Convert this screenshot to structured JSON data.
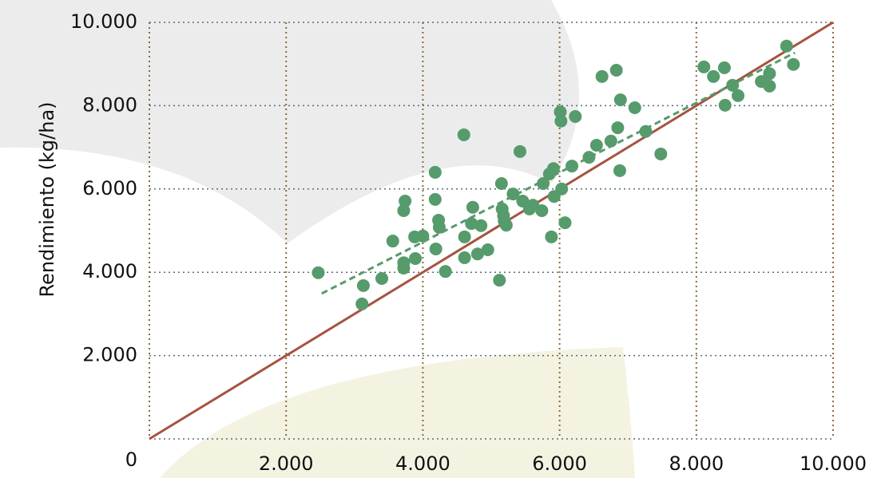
{
  "chart_data": {
    "type": "scatter",
    "y_label": "Rendimiento (kg/ha)",
    "xlim": [
      0,
      10000
    ],
    "ylim": [
      0,
      10000
    ],
    "xticks": [
      {
        "value": 2000,
        "label": "2.000"
      },
      {
        "value": 4000,
        "label": "4.000"
      },
      {
        "value": 6000,
        "label": "6.000"
      },
      {
        "value": 8000,
        "label": "8.000"
      },
      {
        "value": 10000,
        "label": "10.000"
      }
    ],
    "yticks": [
      0,
      {
        "value": 2000,
        "label": "2.000"
      },
      {
        "value": 4000,
        "label": "4.000"
      },
      {
        "value": 6000,
        "label": "6.000"
      },
      {
        "value": 8000,
        "label": "8.000"
      },
      {
        "value": 10000,
        "label": "10.000"
      }
    ],
    "grid": true,
    "color": "#569b6c",
    "x": [
      2470,
      3110,
      3130,
      3400,
      3560,
      3720,
      3740,
      3720,
      3720,
      3880,
      3890,
      4000,
      4180,
      4180,
      4190,
      4230,
      4240,
      4330,
      4600,
      4610,
      4610,
      4710,
      4730,
      4800,
      4850,
      4950,
      5120,
      5150,
      5160,
      5180,
      5190,
      5220,
      5320,
      5420,
      5460,
      5560,
      5610,
      5740,
      5760,
      5850,
      5880,
      5910,
      5920,
      6010,
      6020,
      6030,
      6080,
      6180,
      6230,
      6430,
      6540,
      6620,
      6750,
      6830,
      6850,
      6880,
      6890,
      7100,
      7260,
      7480,
      8110,
      8250,
      8410,
      8420,
      8530,
      8610,
      8950,
      9070,
      9070,
      9320,
      9420
    ],
    "values": [
      3990,
      3240,
      3680,
      3850,
      4750,
      5480,
      5710,
      4230,
      4100,
      4850,
      4330,
      4870,
      6400,
      5750,
      4560,
      5250,
      5080,
      4020,
      7300,
      4850,
      4350,
      5170,
      5560,
      4440,
      5120,
      4540,
      3810,
      6130,
      5520,
      5360,
      5230,
      5130,
      5880,
      6900,
      5710,
      5520,
      5610,
      5480,
      6130,
      6360,
      4850,
      6490,
      5820,
      7850,
      7630,
      6000,
      5190,
      6550,
      7740,
      6760,
      7050,
      8700,
      7150,
      8850,
      7470,
      6440,
      8140,
      7950,
      7380,
      6840,
      8930,
      8700,
      8910,
      8010,
      8490,
      8240,
      8580,
      8770,
      8470,
      9430,
      8990
    ],
    "reference_line": {
      "x": [
        0,
        10000
      ],
      "values": [
        0,
        10000
      ],
      "color": "#a65340"
    },
    "trend_line": {
      "x": [
        2520,
        9440
      ],
      "values": [
        3490,
        9270
      ],
      "color": "#569b6c"
    }
  }
}
